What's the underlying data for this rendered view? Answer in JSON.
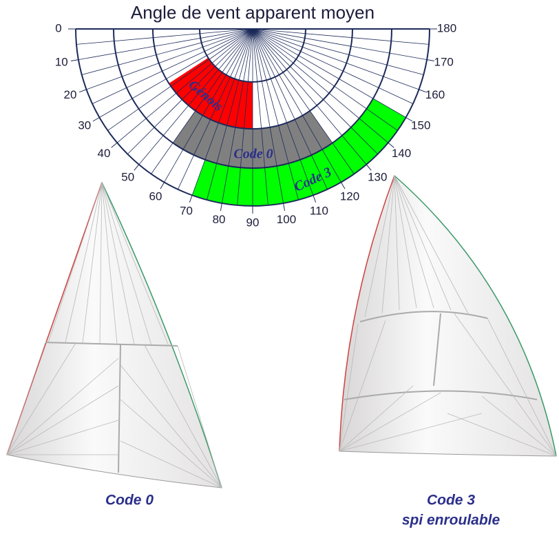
{
  "title": "Angle de vent apparent moyen",
  "angle_ticks": [
    0,
    10,
    20,
    30,
    40,
    50,
    60,
    70,
    80,
    90,
    100,
    110,
    120,
    130,
    140,
    150,
    160,
    170,
    180
  ],
  "bands": [
    {
      "label": "Génois",
      "color": "#ff0000",
      "range": [
        33,
        90
      ]
    },
    {
      "label": "Code 0",
      "color": "#808080",
      "range": [
        55,
        125
      ]
    },
    {
      "label": "Code 3",
      "color": "#00ff00",
      "range": [
        70,
        150
      ]
    }
  ],
  "sails": [
    {
      "caption": [
        "Code 0"
      ]
    },
    {
      "caption": [
        "Code 3",
        "spi enroulable"
      ]
    }
  ]
}
